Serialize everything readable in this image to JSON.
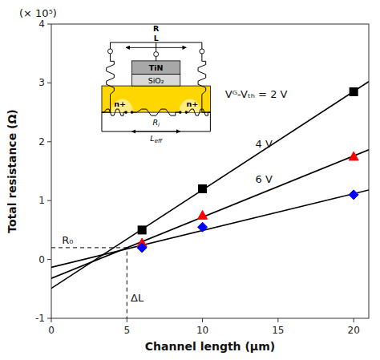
{
  "chart_data": {
    "type": "scatter",
    "title": "(× 10⁵)",
    "x_label": "Channel length (μm)",
    "y_label": "Total resistance (Ω)",
    "xlim": [
      0,
      21
    ],
    "ylim": [
      -1.0,
      4.0
    ],
    "xticks": [
      0,
      5,
      10,
      15,
      20
    ],
    "yticks": [
      -1,
      0,
      1,
      2,
      3,
      4
    ],
    "series": [
      {
        "type": "scatter",
        "color": "black",
        "marker": "square",
        "x": [
          6,
          10,
          20
        ],
        "values": [
          0.5,
          1.2,
          2.85
        ]
      },
      {
        "type": "line",
        "color": "black",
        "x": [
          0,
          21
        ],
        "values": [
          -0.491025641,
          3.0224358974
        ]
      },
      {
        "type": "scatter",
        "color": "red",
        "marker": "triangle",
        "x": [
          6,
          10,
          20
        ],
        "values": [
          0.28,
          0.75,
          1.75
        ]
      },
      {
        "type": "line",
        "color": "black",
        "x": [
          0,
          21
        ],
        "values": [
          -0.3217948718,
          1.8630128205
        ]
      },
      {
        "type": "scatter",
        "color": "blue",
        "marker": "diamond",
        "x": [
          6,
          10,
          20
        ],
        "values": [
          0.2,
          0.55,
          1.1
        ]
      },
      {
        "type": "line",
        "color": "black",
        "x": [
          0,
          21
        ],
        "values": [
          -0.1333333333,
          1.1791666667
        ]
      },
      {
        "type": "line",
        "color": "black",
        "line_style": "dashed",
        "x": [
          0,
          5,
          5
        ],
        "values": [
          0.2,
          0.2,
          -1.0
        ]
      }
    ],
    "annotations": [
      {
        "text": "R₀",
        "x": 0.7,
        "y": 0.27
      },
      {
        "text": "ΔL",
        "x": 5.25,
        "y": -0.72
      },
      {
        "text": "Vᴳ-Vₜₕ = 2 V",
        "x": 11.5,
        "y": 2.75
      },
      {
        "text": "4 V",
        "x": 13.5,
        "y": 1.9
      },
      {
        "text": "6 V",
        "x": 13.5,
        "y": 1.3
      }
    ],
    "inset": {
      "labels": [
        {
          "text": "n+"
        },
        {
          "text": "n+"
        },
        {
          "text": "TiN"
        },
        {
          "text": "SiO₂"
        },
        {
          "text": "R",
          "sub": "i"
        },
        {
          "text": "L",
          "sub": "eff"
        },
        {
          "text": "L"
        },
        {
          "text": "R"
        }
      ]
    }
  }
}
